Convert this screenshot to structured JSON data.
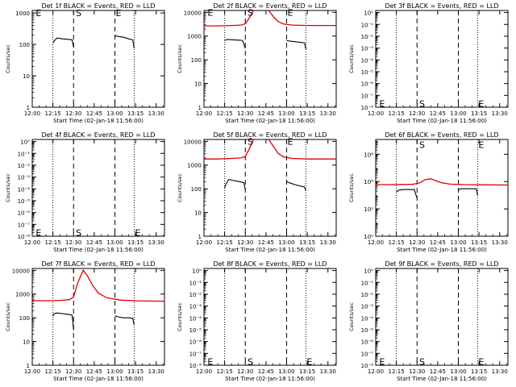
{
  "colors": {
    "events": "#000000",
    "lld": "#e00000",
    "axis": "#000000"
  },
  "common": {
    "xlabel": "Start Time (02-Jan-18 11:56:00)",
    "ylabel": "Counts/sec",
    "xticks": [
      "12:00",
      "12:15",
      "12:30",
      "12:45",
      "13:00",
      "13:15",
      "13:30"
    ],
    "xtick_minutes": [
      0,
      15,
      30,
      45,
      60,
      75,
      90
    ],
    "xlim_minutes": [
      0,
      96
    ]
  },
  "chart_data": [
    {
      "type": "line",
      "title": "Det 1f BLACK = Events, RED = LLD",
      "yscale": "log",
      "ylim": [
        1,
        1200
      ],
      "yticks": [
        {
          "v": 1,
          "label": "1"
        },
        {
          "v": 10,
          "label": "10"
        },
        {
          "v": 100,
          "label": "100"
        },
        {
          "v": 1000,
          "label": "1000"
        }
      ],
      "dashed_x": [
        30,
        60
      ],
      "dotted_x": [
        15,
        74
      ],
      "markers": [
        {
          "x": 2,
          "y": 1000,
          "label": "E"
        },
        {
          "x": 31,
          "y": 1000,
          "label": "S"
        },
        {
          "x": 60,
          "y": 1000,
          "label": "E"
        }
      ],
      "series": [
        {
          "name": "Events",
          "color": "black",
          "segments": [
            [
              [
                15,
                110
              ],
              [
                16,
                130
              ],
              [
                18,
                160
              ],
              [
                22,
                150
              ],
              [
                26,
                145
              ],
              [
                29,
                140
              ],
              [
                30,
                80
              ]
            ],
            [
              [
                60,
                190
              ],
              [
                62,
                180
              ],
              [
                66,
                170
              ],
              [
                70,
                150
              ],
              [
                73,
                140
              ],
              [
                74,
                75
              ]
            ]
          ]
        }
      ]
    },
    {
      "type": "line",
      "title": "Det 2f BLACK = Events, RED = LLD",
      "yscale": "log",
      "ylim": [
        1,
        12000
      ],
      "yticks": [
        {
          "v": 1,
          "label": "1"
        },
        {
          "v": 10,
          "label": "10"
        },
        {
          "v": 100,
          "label": "100"
        },
        {
          "v": 1000,
          "label": "1000"
        },
        {
          "v": 10000,
          "label": "10000"
        }
      ],
      "dashed_x": [
        30,
        60
      ],
      "dotted_x": [
        15,
        74
      ],
      "markers": [
        {
          "x": 2,
          "y": 10000,
          "label": "E"
        },
        {
          "x": 31,
          "y": 10000,
          "label": "S"
        },
        {
          "x": 60,
          "y": 10000,
          "label": "E"
        }
      ],
      "series": [
        {
          "name": "LLD",
          "color": "red",
          "segments": [
            [
              [
                0,
                2700
              ],
              [
                10,
                2700
              ],
              [
                20,
                2800
              ],
              [
                27,
                2900
              ],
              [
                30,
                3300
              ],
              [
                33,
                6000
              ],
              [
                36,
                12000
              ]
            ],
            [
              [
                47,
                12000
              ],
              [
                51,
                6000
              ],
              [
                54,
                4000
              ],
              [
                58,
                3200
              ],
              [
                64,
                2900
              ],
              [
                75,
                2800
              ],
              [
                84,
                2800
              ],
              [
                96,
                2800
              ]
            ]
          ]
        },
        {
          "name": "Events",
          "color": "black",
          "segments": [
            [
              [
                15,
                650
              ],
              [
                17,
                720
              ],
              [
                20,
                700
              ],
              [
                24,
                680
              ],
              [
                28,
                660
              ],
              [
                30,
                300
              ]
            ],
            [
              [
                60,
                650
              ],
              [
                62,
                620
              ],
              [
                66,
                580
              ],
              [
                70,
                540
              ],
              [
                73,
                520
              ],
              [
                74,
                280
              ]
            ]
          ]
        }
      ]
    },
    {
      "type": "line",
      "title": "Det 3f BLACK = Events, RED = LLD",
      "yscale": "log",
      "ylim": [
        1e-08,
        1.5
      ],
      "yticks": [
        {
          "v": 1e-08,
          "label": "10⁻⁸"
        },
        {
          "v": 1e-07,
          "label": "10⁻⁷"
        },
        {
          "v": 1e-06,
          "label": "10⁻⁶"
        },
        {
          "v": 1e-05,
          "label": "10⁻⁵"
        },
        {
          "v": 0.0001,
          "label": "10⁻⁴"
        },
        {
          "v": 0.001,
          "label": "10⁻³"
        },
        {
          "v": 0.01,
          "label": "10⁻²"
        },
        {
          "v": 0.1,
          "label": "10⁻¹"
        },
        {
          "v": 1,
          "label": "10⁰"
        }
      ],
      "dashed_x": [
        30,
        60
      ],
      "dotted_x": [
        15,
        74
      ],
      "markers": [
        {
          "x": 2,
          "y": 2e-08,
          "label": "E"
        },
        {
          "x": 31,
          "y": 2e-08,
          "label": "S"
        },
        {
          "x": 74,
          "y": 2e-08,
          "label": "E"
        }
      ],
      "series": []
    },
    {
      "type": "line",
      "title": "Det 4f BLACK = Events, RED = LLD",
      "yscale": "log",
      "ylim": [
        1e-08,
        1.5
      ],
      "yticks": [
        {
          "v": 1e-08,
          "label": "10⁻⁸"
        },
        {
          "v": 1e-07,
          "label": "10⁻⁷"
        },
        {
          "v": 1e-06,
          "label": "10⁻⁶"
        },
        {
          "v": 1e-05,
          "label": "10⁻⁵"
        },
        {
          "v": 0.0001,
          "label": "10⁻⁴"
        },
        {
          "v": 0.001,
          "label": "10⁻³"
        },
        {
          "v": 0.01,
          "label": "10⁻²"
        },
        {
          "v": 0.1,
          "label": "10⁻¹"
        },
        {
          "v": 1,
          "label": "10⁰"
        }
      ],
      "dashed_x": [
        30,
        60
      ],
      "dotted_x": [
        15,
        74
      ],
      "markers": [
        {
          "x": 2,
          "y": 2e-08,
          "label": "E"
        },
        {
          "x": 31,
          "y": 2e-08,
          "label": "S"
        },
        {
          "x": 74,
          "y": 2e-08,
          "label": "E"
        }
      ],
      "series": []
    },
    {
      "type": "line",
      "title": "Det 5f BLACK = Events, RED = LLD",
      "yscale": "log",
      "ylim": [
        1,
        12000
      ],
      "yticks": [
        {
          "v": 1,
          "label": "1"
        },
        {
          "v": 10,
          "label": "10"
        },
        {
          "v": 100,
          "label": "100"
        },
        {
          "v": 1000,
          "label": "1000"
        },
        {
          "v": 10000,
          "label": "10000"
        }
      ],
      "dashed_x": [
        30,
        60
      ],
      "dotted_x": [
        15,
        74
      ],
      "markers": [
        {
          "x": 31,
          "y": 10000,
          "label": "S"
        },
        {
          "x": 60,
          "y": 10000,
          "label": "E"
        }
      ],
      "series": [
        {
          "name": "LLD",
          "color": "red",
          "segments": [
            [
              [
                0,
                1800
              ],
              [
                10,
                1800
              ],
              [
                20,
                1900
              ],
              [
                27,
                2000
              ],
              [
                30,
                2300
              ],
              [
                33,
                5000
              ],
              [
                36,
                12000
              ]
            ],
            [
              [
                47,
                12000
              ],
              [
                51,
                5500
              ],
              [
                54,
                3000
              ],
              [
                58,
                2200
              ],
              [
                64,
                1900
              ],
              [
                75,
                1800
              ],
              [
                96,
                1800
              ]
            ]
          ]
        },
        {
          "name": "Events",
          "color": "black",
          "segments": [
            [
              [
                15,
                110
              ],
              [
                16,
                160
              ],
              [
                18,
                250
              ],
              [
                22,
                220
              ],
              [
                26,
                200
              ],
              [
                29,
                180
              ],
              [
                30,
                90
              ]
            ],
            [
              [
                60,
                200
              ],
              [
                62,
                180
              ],
              [
                66,
                150
              ],
              [
                70,
                130
              ],
              [
                73,
                120
              ],
              [
                74,
                80
              ]
            ]
          ]
        }
      ]
    },
    {
      "type": "line",
      "title": "Det 6f BLACK = Events, RED = LLD",
      "yscale": "log",
      "ylim": [
        1,
        12000000
      ],
      "yticks": [
        {
          "v": 1,
          "label": "10⁰"
        },
        {
          "v": 100,
          "label": "10²"
        },
        {
          "v": 10000,
          "label": "10⁴"
        },
        {
          "v": 1000000,
          "label": "10⁶"
        }
      ],
      "dashed_x": [
        30,
        60
      ],
      "dotted_x": [
        15,
        74
      ],
      "markers": [
        {
          "x": 31,
          "y": 5000000,
          "label": "S"
        },
        {
          "x": 74,
          "y": 5000000,
          "label": "E"
        }
      ],
      "series": [
        {
          "name": "LLD",
          "color": "red",
          "segments": [
            [
              [
                0,
                6000
              ],
              [
                10,
                6000
              ],
              [
                20,
                6100
              ],
              [
                27,
                6300
              ],
              [
                32,
                8000
              ],
              [
                36,
                14000
              ],
              [
                40,
                16000
              ],
              [
                44,
                11000
              ],
              [
                48,
                8000
              ],
              [
                54,
                6500
              ],
              [
                64,
                6000
              ],
              [
                75,
                5800
              ],
              [
                96,
                5600
              ]
            ]
          ]
        },
        {
          "name": "Events",
          "color": "black",
          "segments": [
            [
              [
                15,
                1700
              ],
              [
                17,
                2400
              ],
              [
                20,
                2600
              ],
              [
                24,
                2600
              ],
              [
                28,
                2600
              ],
              [
                30,
                600
              ]
            ],
            [
              [
                60,
                2500
              ],
              [
                62,
                3000
              ],
              [
                66,
                3000
              ],
              [
                70,
                3000
              ],
              [
                73,
                3000
              ],
              [
                74,
                1000
              ]
            ]
          ]
        }
      ]
    },
    {
      "type": "line",
      "title": "Det 7f BLACK = Events, RED = LLD",
      "yscale": "log",
      "ylim": [
        1,
        12000
      ],
      "yticks": [
        {
          "v": 1,
          "label": "1"
        },
        {
          "v": 10,
          "label": "10"
        },
        {
          "v": 100,
          "label": "100"
        },
        {
          "v": 1000,
          "label": "1000"
        },
        {
          "v": 10000,
          "label": "10000"
        }
      ],
      "dashed_x": [
        30,
        60
      ],
      "dotted_x": [
        15,
        74
      ],
      "markers": [],
      "series": [
        {
          "name": "LLD",
          "color": "red",
          "segments": [
            [
              [
                0,
                530
              ],
              [
                10,
                520
              ],
              [
                20,
                540
              ],
              [
                27,
                580
              ],
              [
                30,
                750
              ],
              [
                33,
                3000
              ],
              [
                37,
                10000
              ],
              [
                40,
                6000
              ],
              [
                44,
                2200
              ],
              [
                48,
                1100
              ],
              [
                54,
                700
              ],
              [
                64,
                560
              ],
              [
                75,
                520
              ],
              [
                96,
                500
              ]
            ]
          ]
        },
        {
          "name": "Events",
          "color": "black",
          "segments": [
            [
              [
                15,
                120
              ],
              [
                16,
                150
              ],
              [
                18,
                160
              ],
              [
                22,
                150
              ],
              [
                26,
                140
              ],
              [
                29,
                130
              ],
              [
                30,
                30
              ]
            ],
            [
              [
                60,
                120
              ],
              [
                62,
                110
              ],
              [
                66,
                100
              ],
              [
                70,
                100
              ],
              [
                73,
                95
              ],
              [
                74,
                50
              ]
            ]
          ]
        }
      ]
    },
    {
      "type": "line",
      "title": "Det 8f BLACK = Events, RED = LLD",
      "yscale": "log",
      "ylim": [
        1e-08,
        1.5
      ],
      "yticks": [
        {
          "v": 1e-08,
          "label": "10⁻⁸"
        },
        {
          "v": 1e-07,
          "label": "10⁻⁷"
        },
        {
          "v": 1e-06,
          "label": "10⁻⁶"
        },
        {
          "v": 1e-05,
          "label": "10⁻⁵"
        },
        {
          "v": 0.0001,
          "label": "10⁻⁴"
        },
        {
          "v": 0.001,
          "label": "10⁻³"
        },
        {
          "v": 0.01,
          "label": "10⁻²"
        },
        {
          "v": 0.1,
          "label": "10⁻¹"
        },
        {
          "v": 1,
          "label": "10⁰"
        }
      ],
      "dashed_x": [
        30,
        60
      ],
      "dotted_x": [
        15,
        74
      ],
      "markers": [
        {
          "x": 2,
          "y": 2e-08,
          "label": "E"
        },
        {
          "x": 31,
          "y": 2e-08,
          "label": "S"
        },
        {
          "x": 74,
          "y": 2e-08,
          "label": "E"
        }
      ],
      "series": []
    },
    {
      "type": "line",
      "title": "Det 9f BLACK = Events, RED = LLD",
      "yscale": "log",
      "ylim": [
        1e-08,
        1.5
      ],
      "yticks": [
        {
          "v": 1e-08,
          "label": "10⁻⁸"
        },
        {
          "v": 1e-07,
          "label": "10⁻⁷"
        },
        {
          "v": 1e-06,
          "label": "10⁻⁶"
        },
        {
          "v": 1e-05,
          "label": "10⁻⁵"
        },
        {
          "v": 0.0001,
          "label": "10⁻⁴"
        },
        {
          "v": 0.001,
          "label": "10⁻³"
        },
        {
          "v": 0.01,
          "label": "10⁻²"
        },
        {
          "v": 0.1,
          "label": "10⁻¹"
        },
        {
          "v": 1,
          "label": "10⁰"
        }
      ],
      "dashed_x": [
        30,
        60
      ],
      "dotted_x": [
        15,
        74
      ],
      "markers": [
        {
          "x": 2,
          "y": 2e-08,
          "label": "E"
        },
        {
          "x": 31,
          "y": 2e-08,
          "label": "S"
        },
        {
          "x": 74,
          "y": 2e-08,
          "label": "E"
        }
      ],
      "series": []
    }
  ]
}
